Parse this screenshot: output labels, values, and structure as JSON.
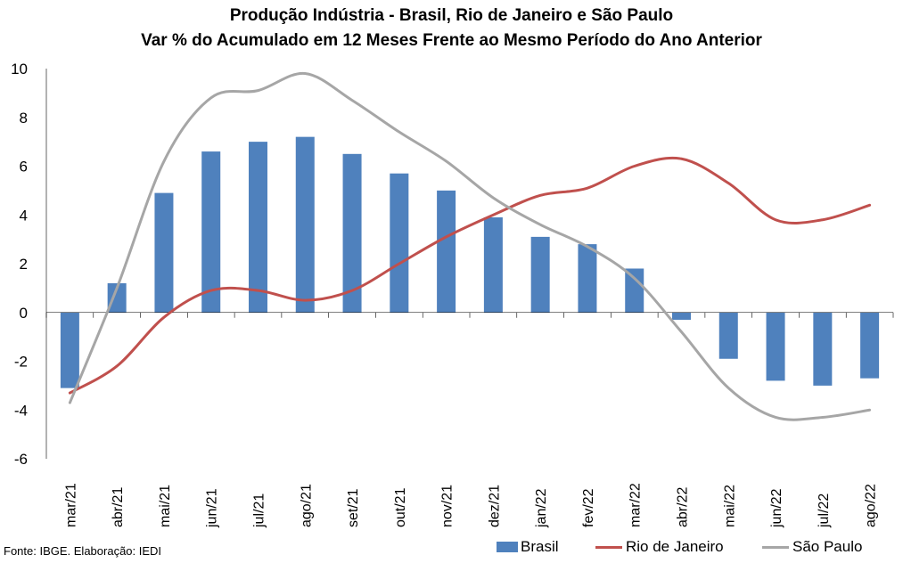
{
  "chart_data": {
    "type": "bar+line",
    "title": "Produção Indústria - Brasil, Rio de Janeiro e São Paulo",
    "subtitle": "Var % do Acumulado em 12 Meses Frente ao Mesmo Período do Ano Anterior",
    "categories": [
      "mar/21",
      "abr/21",
      "mai/21",
      "jun/21",
      "jul/21",
      "ago/21",
      "set/21",
      "out/21",
      "nov/21",
      "dez/21",
      "jan/22",
      "fev/22",
      "mar/22",
      "abr/22",
      "mai/22",
      "jun/22",
      "jul/22",
      "ago/22"
    ],
    "ylim": [
      -6,
      10
    ],
    "yticks": [
      "10",
      "8",
      "6",
      "4",
      "2",
      "0",
      "-2",
      "-4",
      "-6"
    ],
    "grid": false,
    "legend_position": "bottom-right",
    "series": [
      {
        "name": "Brasil",
        "type": "bar",
        "color": "#4f81bd",
        "values": [
          -3.1,
          1.2,
          4.9,
          6.6,
          7.0,
          7.2,
          6.5,
          5.7,
          5.0,
          3.9,
          3.1,
          2.8,
          1.8,
          -0.3,
          -1.9,
          -2.8,
          -3.0,
          -2.7
        ]
      },
      {
        "name": "Rio de Janeiro",
        "type": "line",
        "color": "#c0504d",
        "values": [
          -3.3,
          -2.2,
          -0.2,
          0.9,
          0.9,
          0.5,
          0.9,
          2.0,
          3.1,
          4.0,
          4.8,
          5.1,
          6.0,
          6.3,
          5.3,
          3.8,
          3.8,
          4.4
        ]
      },
      {
        "name": "São Paulo",
        "type": "line",
        "color": "#a6a6a6",
        "values": [
          -3.7,
          1.0,
          6.2,
          8.8,
          9.1,
          9.8,
          8.7,
          7.4,
          6.2,
          4.7,
          3.6,
          2.7,
          1.4,
          -0.8,
          -3.1,
          -4.3,
          -4.3,
          -4.0
        ]
      }
    ]
  },
  "footer": {
    "source": "Fonte: IBGE. Elaboração: IEDI"
  }
}
